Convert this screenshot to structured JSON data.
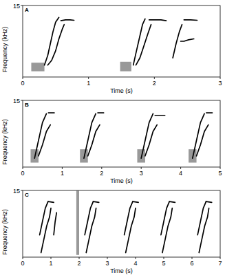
{
  "chart_data": [
    {
      "type": "spectrogram",
      "title": "A",
      "x_label": "Time (s)",
      "y_label": "Frequency (kHz)",
      "xlim": [
        0,
        3
      ],
      "xticks": [
        0,
        1,
        2,
        3
      ],
      "ylim": [
        0,
        15
      ],
      "yticks": [
        15
      ],
      "color": "#000000",
      "bursts": [
        {
          "start": 0.13,
          "end": 0.33,
          "low": 1.2,
          "high": 3.0
        },
        {
          "start": 1.48,
          "end": 1.65,
          "low": 1.2,
          "high": 3.2
        }
      ],
      "series": [
        {
          "x": [
            0.33,
            0.38,
            0.42,
            0.46,
            0.5,
            0.55
          ],
          "values": [
            2.5,
            4.5,
            7,
            9.5,
            11.5,
            12.5
          ]
        },
        {
          "x": [
            0.38,
            0.44,
            0.5,
            0.55,
            0.6,
            0.63
          ],
          "values": [
            2.5,
            3.5,
            5.5,
            8,
            10,
            11
          ]
        },
        {
          "x": [
            0.58,
            0.65,
            0.72,
            0.78
          ],
          "values": [
            11.8,
            12,
            12,
            11.9
          ]
        },
        {
          "x": [
            1.68,
            1.72,
            1.77,
            1.82,
            1.86
          ],
          "values": [
            2.5,
            5,
            8,
            11,
            12.2
          ]
        },
        {
          "x": [
            1.72,
            1.78,
            1.84,
            1.9,
            1.95
          ],
          "values": [
            2.5,
            4,
            6.5,
            9,
            11
          ]
        },
        {
          "x": [
            1.92,
            2.0,
            2.1,
            2.18
          ],
          "values": [
            12,
            12,
            12,
            11.8
          ]
        },
        {
          "x": [
            2.28,
            2.33,
            2.38,
            2.42
          ],
          "values": [
            4,
            7,
            9.5,
            11
          ]
        },
        {
          "x": [
            2.4,
            2.45,
            2.52,
            2.6
          ],
          "values": [
            7.5,
            7.5,
            7.8,
            8
          ]
        },
        {
          "x": [
            2.45,
            2.55,
            2.65
          ],
          "values": [
            12,
            12,
            11.9
          ]
        }
      ]
    },
    {
      "type": "spectrogram",
      "title": "B",
      "x_label": "Time (s)",
      "y_label": "Frequency (kHz)",
      "xlim": [
        0,
        5
      ],
      "xticks": [
        0,
        1,
        2,
        3,
        4,
        5
      ],
      "ylim": [
        0,
        15
      ],
      "yticks": [
        15
      ],
      "color": "#000000",
      "bursts": [
        {
          "start": 0.2,
          "end": 0.4,
          "low": 1,
          "high": 4
        },
        {
          "start": 1.45,
          "end": 1.65,
          "low": 1,
          "high": 4
        },
        {
          "start": 2.9,
          "end": 3.1,
          "low": 1,
          "high": 4
        },
        {
          "start": 4.2,
          "end": 4.4,
          "low": 1,
          "high": 4
        }
      ],
      "series": [
        {
          "x": [
            0.3,
            0.4,
            0.5,
            0.6
          ],
          "values": [
            2,
            6,
            10,
            12
          ]
        },
        {
          "x": [
            0.4,
            0.5,
            0.6,
            0.7
          ],
          "values": [
            2.5,
            5,
            8,
            9.5
          ]
        },
        {
          "x": [
            0.65,
            0.8
          ],
          "values": [
            12.2,
            12.2
          ]
        },
        {
          "x": [
            1.55,
            1.65,
            1.75,
            1.85
          ],
          "values": [
            2,
            6,
            10,
            12
          ]
        },
        {
          "x": [
            1.65,
            1.75,
            1.85,
            1.95
          ],
          "values": [
            2.5,
            5,
            8,
            9.5
          ]
        },
        {
          "x": [
            1.9,
            2.05
          ],
          "values": [
            12.2,
            12.2
          ]
        },
        {
          "x": [
            3.0,
            3.1,
            3.2,
            3.3
          ],
          "values": [
            2,
            6,
            10,
            12
          ]
        },
        {
          "x": [
            3.1,
            3.2,
            3.3,
            3.4
          ],
          "values": [
            2.5,
            5,
            8,
            9.5
          ]
        },
        {
          "x": [
            3.35,
            3.6
          ],
          "values": [
            11.6,
            11.6
          ]
        },
        {
          "x": [
            4.3,
            4.4,
            4.5,
            4.6
          ],
          "values": [
            2,
            6,
            10,
            12
          ]
        },
        {
          "x": [
            4.4,
            4.5,
            4.6,
            4.7
          ],
          "values": [
            2.5,
            5,
            8,
            9.5
          ]
        },
        {
          "x": [
            4.65,
            4.8
          ],
          "values": [
            12.2,
            12.2
          ]
        }
      ]
    },
    {
      "type": "spectrogram",
      "title": "C",
      "x_label": "Time (s)",
      "y_label": "Frequency (kHz)",
      "xlim": [
        0,
        7
      ],
      "xticks": [
        0,
        1,
        2,
        3,
        4,
        5,
        6,
        7
      ],
      "ylim": [
        0,
        15
      ],
      "yticks": [
        15
      ],
      "color": "#000000",
      "bursts": [
        {
          "start": 1.9,
          "end": 2.0,
          "low": 0.5,
          "high": 15
        }
      ],
      "series": [
        {
          "x": [
            0.6,
            0.7,
            0.8,
            0.9
          ],
          "values": [
            5,
            8,
            11,
            12.5
          ]
        },
        {
          "x": [
            0.9,
            1.1
          ],
          "values": [
            12.5,
            12.3
          ]
        },
        {
          "x": [
            0.65,
            0.75,
            0.85,
            0.95,
            1.0
          ],
          "values": [
            1,
            4,
            7,
            9,
            11
          ]
        },
        {
          "x": [
            1.1,
            1.15,
            1.2
          ],
          "values": [
            5,
            8,
            10
          ]
        },
        {
          "x": [
            2.2,
            2.3,
            2.4,
            2.5
          ],
          "values": [
            5,
            8,
            11,
            12.5
          ]
        },
        {
          "x": [
            2.5,
            2.7
          ],
          "values": [
            12.5,
            12.3
          ]
        },
        {
          "x": [
            2.25,
            2.35,
            2.45,
            2.55,
            2.6
          ],
          "values": [
            1,
            4,
            7,
            9,
            11
          ]
        },
        {
          "x": [
            3.6,
            3.7,
            3.8,
            3.9
          ],
          "values": [
            5,
            8,
            11,
            12.5
          ]
        },
        {
          "x": [
            3.9,
            4.1
          ],
          "values": [
            12.5,
            12.3
          ]
        },
        {
          "x": [
            3.65,
            3.75,
            3.85,
            3.95,
            4.0
          ],
          "values": [
            1,
            4,
            7,
            9,
            11
          ]
        },
        {
          "x": [
            4.9,
            5.0,
            5.1,
            5.2
          ],
          "values": [
            5,
            8,
            11,
            12.5
          ]
        },
        {
          "x": [
            5.2,
            5.4
          ],
          "values": [
            12.5,
            12.3
          ]
        },
        {
          "x": [
            4.95,
            5.05,
            5.15,
            5.25,
            5.3
          ],
          "values": [
            1,
            4,
            7,
            9,
            11
          ]
        },
        {
          "x": [
            6.2,
            6.3,
            6.4,
            6.5
          ],
          "values": [
            5,
            8,
            11,
            12.5
          ]
        },
        {
          "x": [
            6.5,
            6.7
          ],
          "values": [
            12.5,
            12.3
          ]
        },
        {
          "x": [
            6.25,
            6.35,
            6.45,
            6.55,
            6.6
          ],
          "values": [
            1,
            4,
            7,
            9,
            11
          ]
        }
      ]
    }
  ]
}
